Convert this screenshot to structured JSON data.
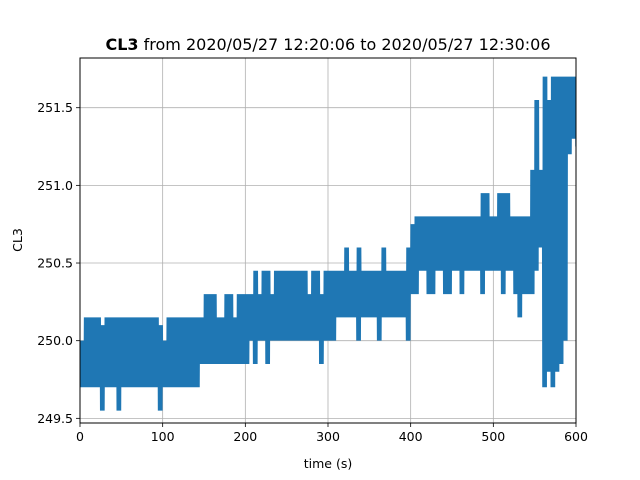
{
  "chart_data": {
    "type": "line",
    "title_bold": "CL3",
    "title_rest": " from 2020/05/27 12:20:06 to 2020/05/27 12:30:06",
    "xlabel": "time (s)",
    "ylabel": "CL3",
    "xlim": [
      0,
      600
    ],
    "ylim": [
      249.47,
      251.82
    ],
    "xticks": [
      0,
      100,
      200,
      300,
      400,
      500,
      600
    ],
    "yticks": [
      249.5,
      250.0,
      250.5,
      251.0,
      251.5
    ],
    "ytick_labels": [
      "249.5",
      "250.0",
      "250.5",
      "251.0",
      "251.5"
    ],
    "grid": true,
    "series_color": "#1f77b4",
    "series": [
      {
        "x": [
          0,
          5,
          10,
          15,
          20,
          25,
          30,
          35,
          40,
          45,
          50,
          55,
          60,
          65,
          70,
          75,
          80,
          85,
          90,
          95,
          100,
          105,
          110,
          115,
          120,
          125,
          130,
          135,
          140,
          145,
          150,
          155,
          160,
          165,
          170,
          175,
          180,
          185,
          190,
          195,
          200,
          205,
          210,
          215,
          220,
          225,
          230,
          235,
          240,
          245,
          250,
          255,
          260,
          265,
          270,
          275,
          280,
          285,
          290,
          295,
          300,
          305,
          310,
          315,
          320,
          325,
          330,
          335,
          340,
          345,
          350,
          355,
          360,
          365,
          370,
          375,
          380,
          385,
          390,
          395,
          400,
          405,
          410,
          415,
          420,
          425,
          430,
          435,
          440,
          445,
          450,
          455,
          460,
          465,
          470,
          475,
          480,
          485,
          490,
          495,
          500,
          505,
          510,
          515,
          520,
          525,
          530,
          535,
          540,
          545,
          550,
          555,
          560,
          565,
          570,
          575,
          580,
          585,
          590,
          595,
          600
        ],
        "low": [
          249.7,
          249.7,
          249.7,
          249.7,
          249.7,
          249.55,
          249.7,
          249.7,
          249.7,
          249.55,
          249.7,
          249.7,
          249.7,
          249.7,
          249.7,
          249.7,
          249.7,
          249.7,
          249.7,
          249.55,
          249.7,
          249.7,
          249.7,
          249.7,
          249.7,
          249.7,
          249.7,
          249.7,
          249.7,
          249.85,
          249.85,
          249.85,
          249.85,
          249.85,
          249.85,
          249.85,
          249.85,
          249.85,
          249.85,
          249.85,
          249.85,
          250.0,
          249.85,
          250.0,
          250.0,
          249.85,
          250.0,
          250.0,
          250.0,
          250.0,
          250.0,
          250.0,
          250.0,
          250.0,
          250.0,
          250.0,
          250.0,
          250.0,
          249.85,
          250.0,
          250.0,
          250.0,
          250.15,
          250.15,
          250.15,
          250.15,
          250.15,
          250.0,
          250.15,
          250.15,
          250.15,
          250.15,
          250.0,
          250.15,
          250.15,
          250.15,
          250.15,
          250.15,
          250.15,
          250.0,
          250.3,
          250.3,
          250.45,
          250.45,
          250.3,
          250.3,
          250.45,
          250.45,
          250.3,
          250.3,
          250.45,
          250.45,
          250.3,
          250.45,
          250.45,
          250.45,
          250.45,
          250.3,
          250.45,
          250.45,
          250.45,
          250.45,
          250.3,
          250.45,
          250.45,
          250.3,
          250.15,
          250.3,
          250.3,
          250.3,
          250.45,
          250.6,
          249.7,
          249.8,
          249.7,
          249.8,
          249.85,
          250.0,
          251.2,
          251.3,
          251.25
        ],
        "high": [
          250.0,
          250.15,
          250.15,
          250.15,
          250.15,
          250.1,
          250.15,
          250.15,
          250.15,
          250.15,
          250.15,
          250.15,
          250.15,
          250.15,
          250.15,
          250.15,
          250.15,
          250.15,
          250.15,
          250.1,
          250.0,
          250.15,
          250.15,
          250.15,
          250.15,
          250.15,
          250.15,
          250.15,
          250.15,
          250.15,
          250.3,
          250.3,
          250.3,
          250.15,
          250.15,
          250.3,
          250.3,
          250.15,
          250.3,
          250.3,
          250.3,
          250.3,
          250.45,
          250.3,
          250.45,
          250.45,
          250.3,
          250.45,
          250.45,
          250.45,
          250.45,
          250.45,
          250.45,
          250.45,
          250.45,
          250.3,
          250.45,
          250.45,
          250.3,
          250.45,
          250.45,
          250.45,
          250.45,
          250.45,
          250.6,
          250.45,
          250.45,
          250.6,
          250.45,
          250.45,
          250.45,
          250.45,
          250.45,
          250.6,
          250.45,
          250.45,
          250.45,
          250.45,
          250.45,
          250.6,
          250.75,
          250.8,
          250.8,
          250.8,
          250.8,
          250.8,
          250.8,
          250.8,
          250.8,
          250.8,
          250.8,
          250.8,
          250.8,
          250.8,
          250.8,
          250.8,
          250.8,
          250.95,
          250.95,
          250.8,
          250.8,
          250.95,
          250.95,
          250.95,
          250.8,
          250.8,
          250.8,
          250.8,
          250.8,
          251.1,
          251.55,
          251.1,
          251.7,
          251.55,
          251.7,
          251.7,
          251.7,
          251.7,
          251.7,
          251.7,
          251.55
        ]
      }
    ]
  }
}
